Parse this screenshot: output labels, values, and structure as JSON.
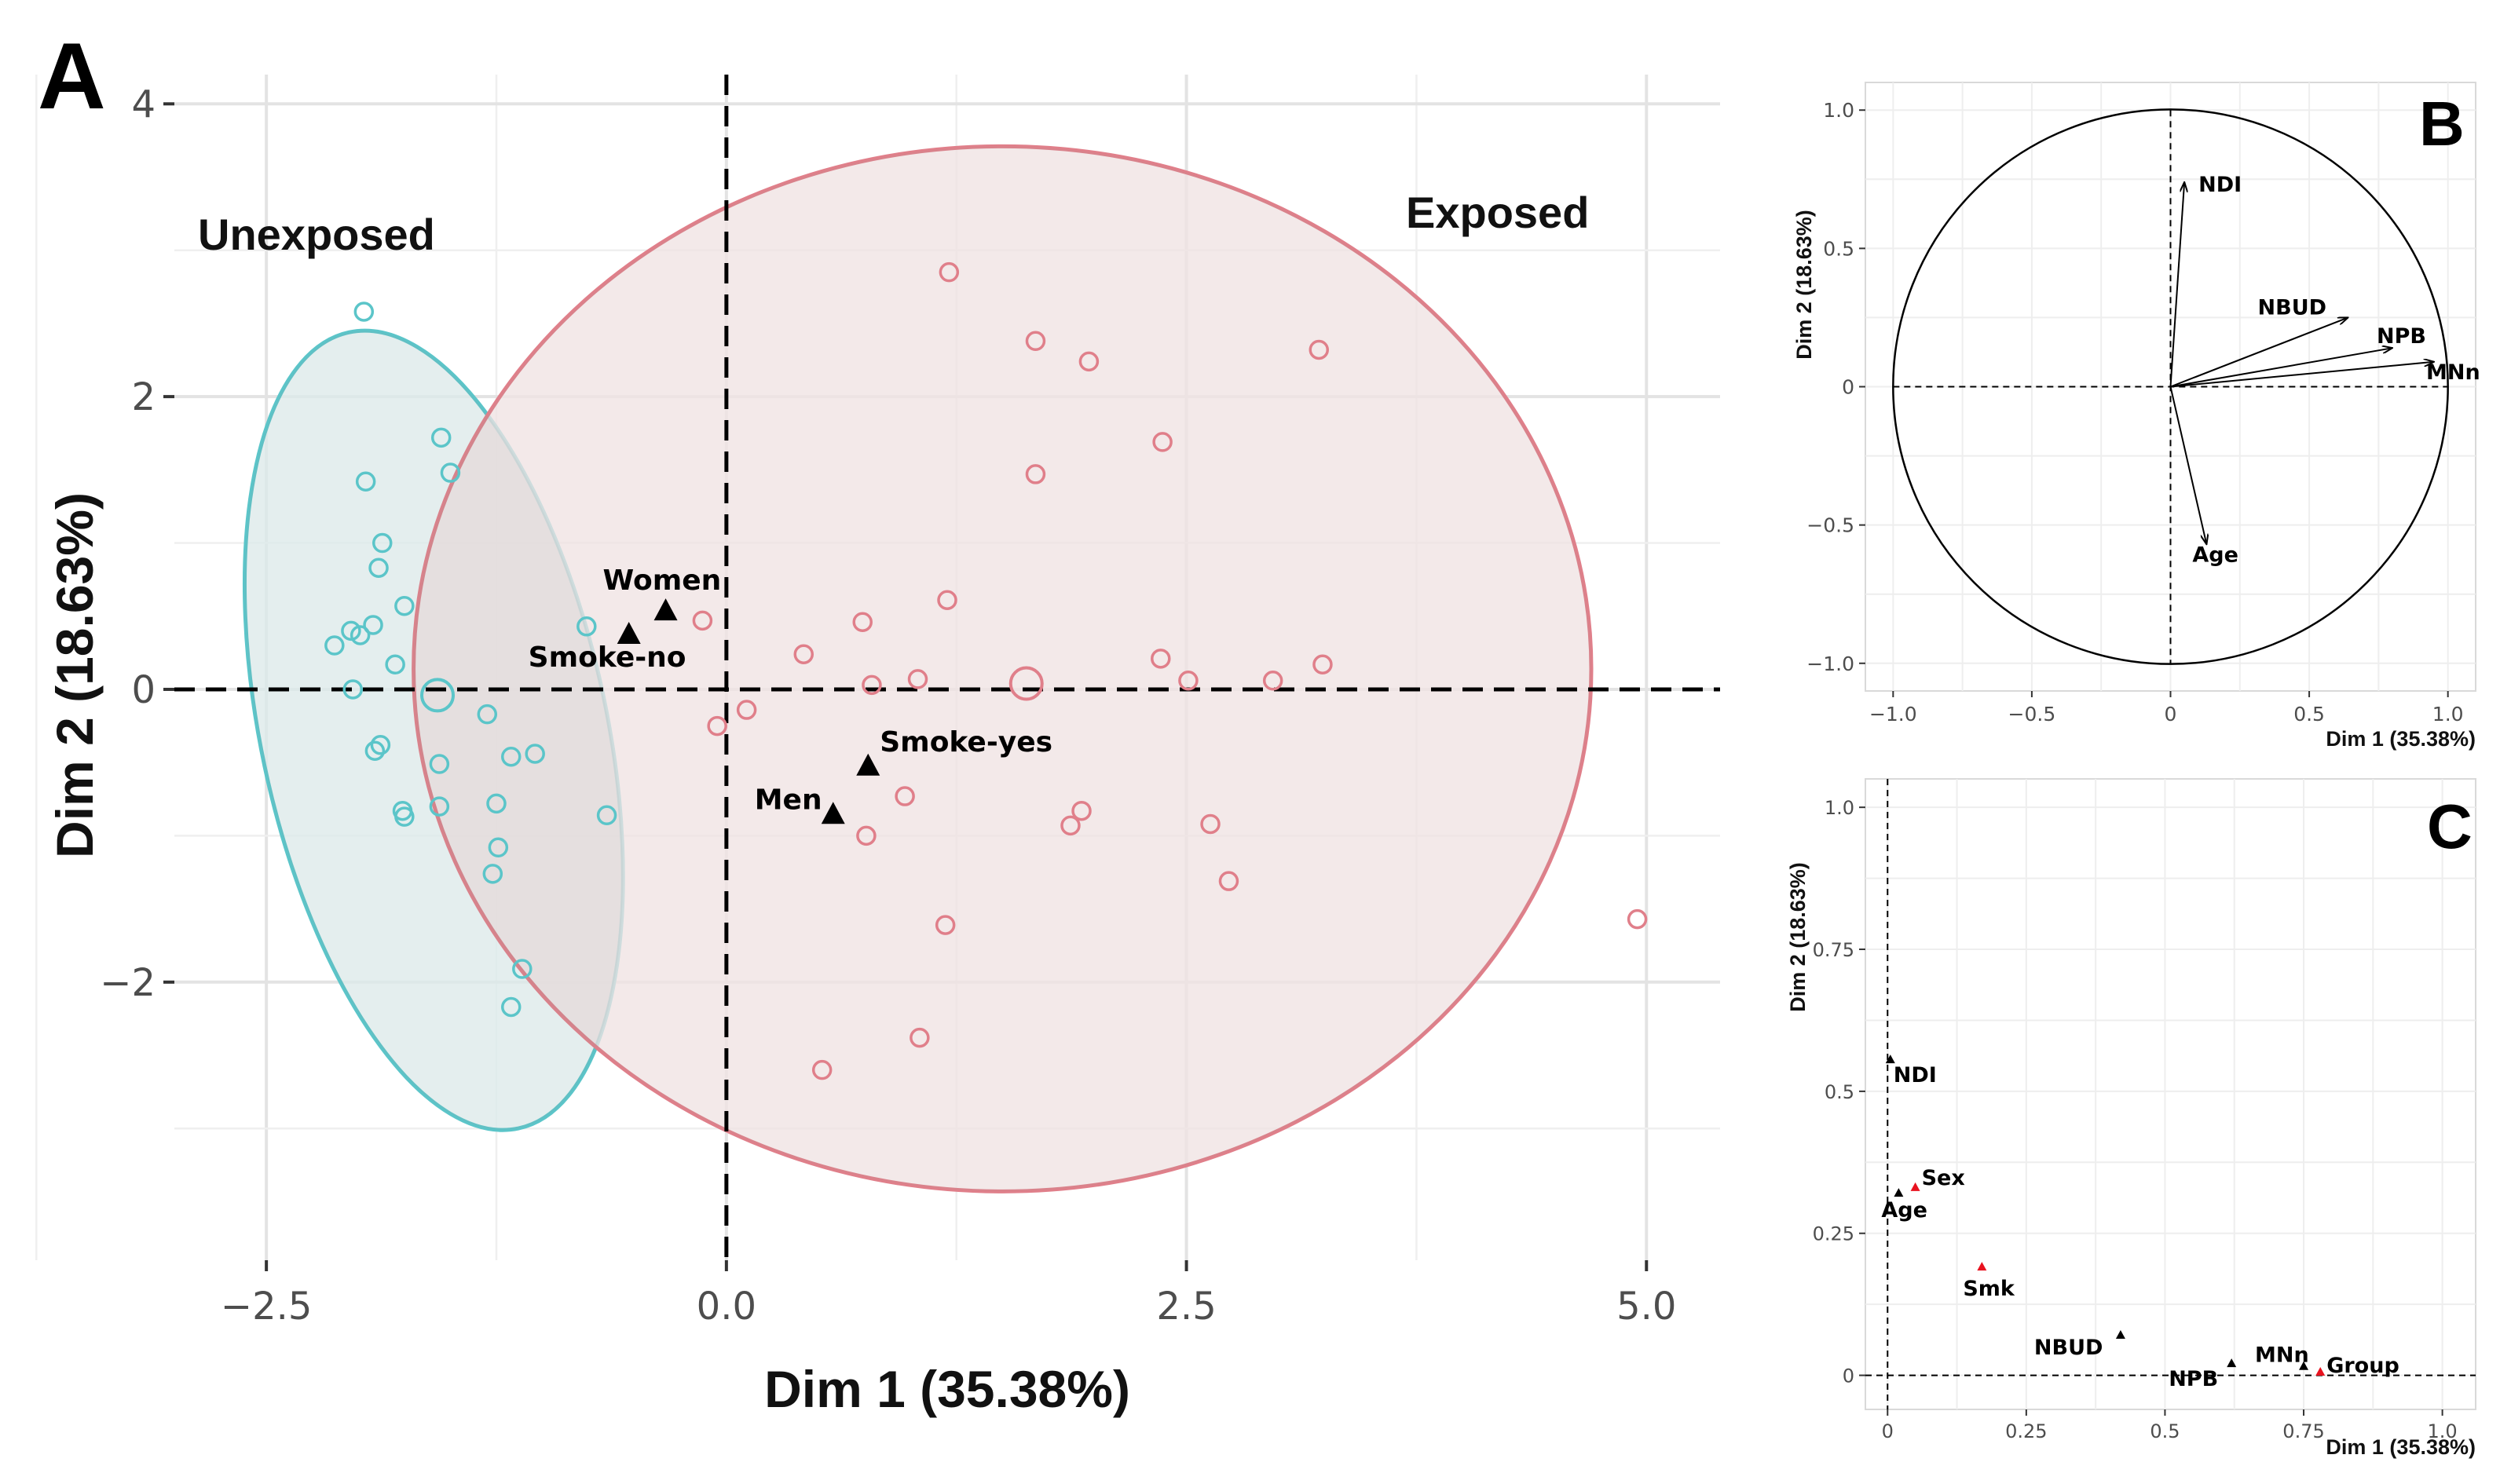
{
  "chart_data": [
    {
      "panel": "A",
      "type": "scatter",
      "xlabel": "Dim 1 (35.38%)",
      "ylabel": "Dim 2 (18.63%)",
      "xlim": [
        -3.0,
        5.4
      ],
      "ylim": [
        -3.9,
        4.2
      ],
      "xticks": [
        -2.5,
        0.0,
        2.5,
        5.0
      ],
      "xtick_labels": [
        "−2.5",
        "0.0",
        "2.5",
        "5.0"
      ],
      "yticks": [
        -2,
        0,
        2,
        4
      ],
      "ytick_labels": [
        "−2",
        "0",
        "2",
        "4"
      ],
      "grid": true,
      "groups": [
        {
          "name": "Unexposed",
          "color": "#5bc5c9",
          "fill": "#e6f6f6",
          "ellipse": {
            "cx": -1.59,
            "cy": -0.28,
            "rx": 0.94,
            "ry": 2.78,
            "rotation_deg": -12
          },
          "centroid": [
            -1.57,
            -0.04
          ],
          "points": [
            [
              -1.97,
              2.58
            ],
            [
              -1.55,
              1.72
            ],
            [
              -1.5,
              1.48
            ],
            [
              -1.96,
              1.42
            ],
            [
              -1.87,
              1.0
            ],
            [
              -1.89,
              0.83
            ],
            [
              -1.75,
              0.57
            ],
            [
              -1.92,
              0.44
            ],
            [
              -2.04,
              0.4
            ],
            [
              -1.99,
              0.37
            ],
            [
              -2.13,
              0.3
            ],
            [
              -1.8,
              0.17
            ],
            [
              -2.03,
              0.0
            ],
            [
              -1.3,
              -0.17
            ],
            [
              -1.56,
              -0.51
            ],
            [
              -1.17,
              -0.46
            ],
            [
              -1.04,
              -0.44
            ],
            [
              -1.88,
              -0.38
            ],
            [
              -1.91,
              -0.42
            ],
            [
              -1.76,
              -0.83
            ],
            [
              -1.75,
              -0.87
            ],
            [
              -1.56,
              -0.8
            ],
            [
              -1.25,
              -0.78
            ],
            [
              -1.24,
              -1.08
            ],
            [
              -1.27,
              -1.26
            ],
            [
              -1.11,
              -1.91
            ],
            [
              -1.17,
              -2.17
            ],
            [
              -0.65,
              -0.86
            ],
            [
              -0.76,
              0.43
            ]
          ]
        },
        {
          "name": "Exposed",
          "color": "#e07f8a",
          "fill": "#fcedee",
          "ellipse": {
            "cx": 1.5,
            "cy": 0.14,
            "rx": 3.2,
            "ry": 3.57,
            "rotation_deg": 0
          },
          "centroid": [
            1.63,
            0.04
          ],
          "points": [
            [
              1.21,
              2.85
            ],
            [
              1.68,
              2.38
            ],
            [
              1.97,
              2.24
            ],
            [
              3.22,
              2.32
            ],
            [
              2.37,
              1.69
            ],
            [
              1.68,
              1.47
            ],
            [
              1.2,
              0.61
            ],
            [
              0.74,
              0.46
            ],
            [
              -0.13,
              0.47
            ],
            [
              0.42,
              0.24
            ],
            [
              0.79,
              0.03
            ],
            [
              1.04,
              0.07
            ],
            [
              2.36,
              0.21
            ],
            [
              2.51,
              0.06
            ],
            [
              2.97,
              0.06
            ],
            [
              3.24,
              0.17
            ],
            [
              0.11,
              -0.14
            ],
            [
              -0.05,
              -0.25
            ],
            [
              0.97,
              -0.73
            ],
            [
              1.93,
              -0.83
            ],
            [
              1.87,
              -0.93
            ],
            [
              2.63,
              -0.92
            ],
            [
              0.76,
              -1.0
            ],
            [
              2.73,
              -1.31
            ],
            [
              1.19,
              -1.61
            ],
            [
              1.05,
              -2.38
            ],
            [
              0.52,
              -2.6
            ],
            [
              4.95,
              -1.57
            ]
          ]
        }
      ],
      "supplementary": [
        {
          "label": "Women",
          "x": -0.33,
          "y": 0.53
        },
        {
          "label": "Smoke-no",
          "x": -0.53,
          "y": 0.37
        },
        {
          "label": "Smoke-yes",
          "x": 0.77,
          "y": -0.53
        },
        {
          "label": "Men",
          "x": 0.58,
          "y": -0.86
        }
      ]
    },
    {
      "panel": "B",
      "type": "variable correlation circle",
      "xlabel": "Dim 1 (35.38%)",
      "ylabel": "Dim 2 (18.63%)",
      "xlim": [
        -1.1,
        1.1
      ],
      "ylim": [
        -1.1,
        1.1
      ],
      "xticks": [
        -1.0,
        -0.5,
        0,
        0.5,
        1.0
      ],
      "xtick_labels": [
        "−1.0",
        "−0.5",
        "0",
        "0.5",
        "1.0"
      ],
      "yticks": [
        -1.0,
        -0.5,
        0,
        0.5,
        1.0
      ],
      "ytick_labels": [
        "−1.0",
        "−0.5",
        "0",
        "0.5",
        "1.0"
      ],
      "vectors": [
        {
          "label": "NDI",
          "x": 0.05,
          "y": 0.74
        },
        {
          "label": "NBUD",
          "x": 0.64,
          "y": 0.25
        },
        {
          "label": "NPB",
          "x": 0.8,
          "y": 0.14
        },
        {
          "label": "MNn",
          "x": 0.95,
          "y": 0.09
        },
        {
          "label": "Age",
          "x": 0.13,
          "y": -0.57
        }
      ]
    },
    {
      "panel": "C",
      "type": "scatter",
      "xlabel": "Dim 1 (35.38%)",
      "ylabel": "Dim 2 (18.63%)",
      "xlim": [
        -0.04,
        1.06
      ],
      "ylim": [
        -0.06,
        1.05
      ],
      "xticks": [
        0,
        0.25,
        0.5,
        0.75,
        1.0
      ],
      "xtick_labels": [
        "0",
        "0.25",
        "0.5",
        "0.75",
        "1.0"
      ],
      "yticks": [
        0,
        0.25,
        0.5,
        0.75,
        1.0
      ],
      "ytick_labels": [
        "0",
        "0.25",
        "0.5",
        "0.75",
        "1.0"
      ],
      "points": [
        {
          "label": "NDI",
          "x": 0.005,
          "y": 0.555,
          "color": "#000000"
        },
        {
          "label": "Sex",
          "x": 0.05,
          "y": 0.33,
          "color": "#e8121f"
        },
        {
          "label": "Age",
          "x": 0.02,
          "y": 0.32,
          "color": "#000000"
        },
        {
          "label": "Smk",
          "x": 0.17,
          "y": 0.19,
          "color": "#e8121f"
        },
        {
          "label": "NBUD",
          "x": 0.42,
          "y": 0.07,
          "color": "#000000"
        },
        {
          "label": "NPB",
          "x": 0.62,
          "y": 0.02,
          "color": "#000000"
        },
        {
          "label": "MNn",
          "x": 0.75,
          "y": 0.015,
          "color": "#000000"
        },
        {
          "label": "Group",
          "x": 0.78,
          "y": 0.005,
          "color": "#e8121f"
        }
      ]
    }
  ],
  "panel_letters": [
    "A",
    "B",
    "C"
  ],
  "group_labels": [
    "Unexposed",
    "Exposed"
  ]
}
